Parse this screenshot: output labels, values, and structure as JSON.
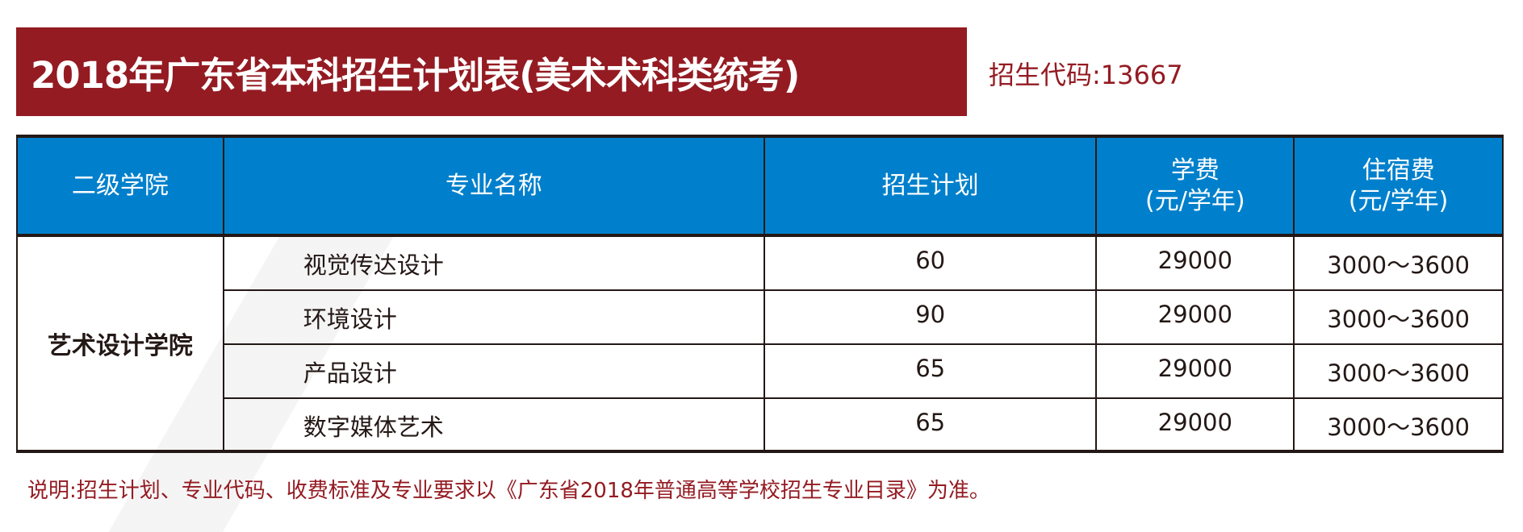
{
  "title": "2018年广东省本科招生计划表(美术术科类统考)",
  "enrollment_code": "招生代码:13667",
  "table": {
    "headers": [
      "二级学院",
      "专业名称",
      "招生计划",
      "学费\n(元/学年)",
      "住宿费\n(元/学年)"
    ],
    "headers_lines": [
      [
        "二级学院"
      ],
      [
        "专业名称"
      ],
      [
        "招生计划"
      ],
      [
        "学费",
        "(元/学年)"
      ],
      [
        "住宿费",
        "(元/学年)"
      ]
    ],
    "college": "艺术设计学院",
    "rows": [
      {
        "major": "视觉传达设计",
        "plan": "60",
        "tuition": "29000",
        "dorm": "3000～3600"
      },
      {
        "major": "环境设计",
        "plan": "90",
        "tuition": "29000",
        "dorm": "3000～3600"
      },
      {
        "major": "产品设计",
        "plan": "65",
        "tuition": "29000",
        "dorm": "3000～3600"
      },
      {
        "major": "数字媒体艺术",
        "plan": "65",
        "tuition": "29000",
        "dorm": "3000～3600"
      }
    ]
  },
  "note": "说明:招生计划、专业代码、收费标准及专业要求以《广东省2018年普通高等学校招生专业目录》为准。",
  "colors": {
    "title_bg": "#941b22",
    "header_bg": "#0080cc",
    "border": "#231815"
  }
}
